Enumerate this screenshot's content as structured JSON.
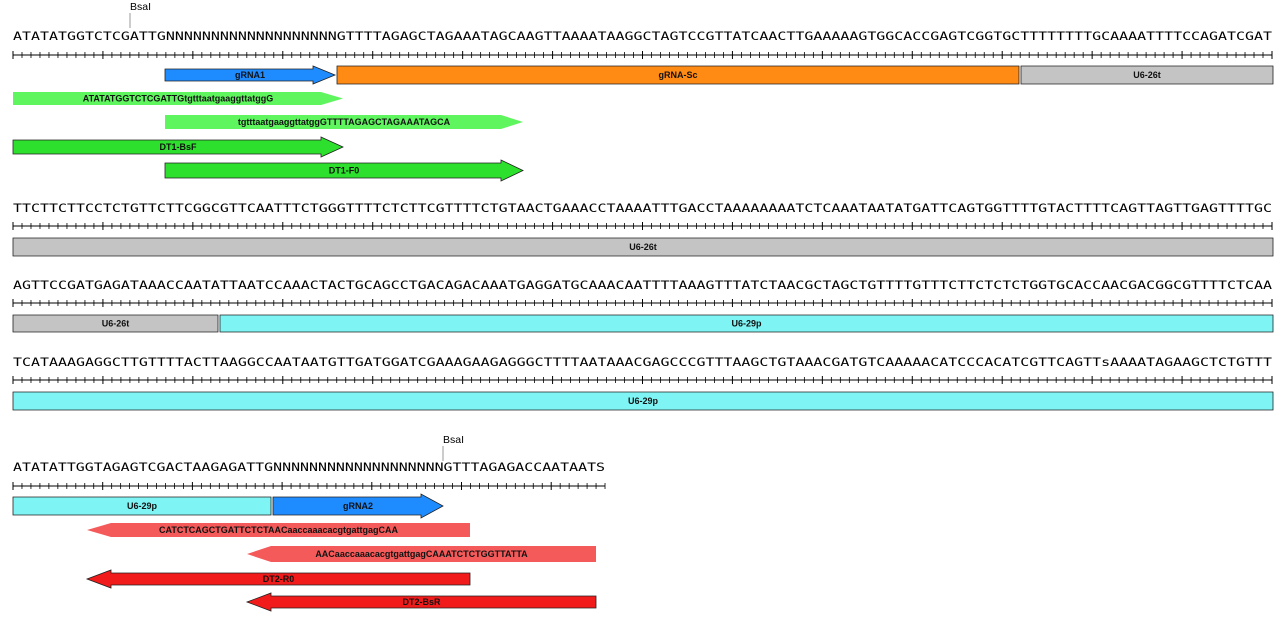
{
  "enzyme_label": "BsaI",
  "colors": {
    "grna": "#1e8cff",
    "scaffold": "#ff8a14",
    "u6_26t": "#c4c4c4",
    "u6_29p": "#7ff4f4",
    "primer_light_green": "#5ff55f",
    "primer_green": "#2ee02e",
    "primer_light_red": "#f55a5a",
    "primer_red": "#f21b1b"
  },
  "sequence_rows": [
    {
      "sequence": "ATATATGGTCTCGATTGNNNNNNNNNNNNNNNNNNNGTTTTAGAGCTAGAAATAGCAAGTTAAAATAAGGCTAGTCCGTTATCAACTTGAAAAAGTGGCACCGAGTCGGTGCTTTTTTTTGCAAAATTTTCCAGATCGAT",
      "features": [
        {
          "name": "gRNA1",
          "color": "grna",
          "arrow": "right"
        },
        {
          "name": "gRNA-Sc",
          "color": "scaffold",
          "arrow": "none"
        },
        {
          "name": "U6-26t",
          "color": "u6_26t",
          "arrow": "none"
        },
        {
          "name": "ATATATGGTCTCGATTGtgtttaatgaaggttatggG",
          "color": "primer_light_green",
          "arrow": "right"
        },
        {
          "name": "tgtttaatgaaggttatggGTTTTAGAGCTAGAAATAGCA",
          "color": "primer_light_green",
          "arrow": "right"
        },
        {
          "name": "DT1-BsF",
          "color": "primer_green",
          "arrow": "right"
        },
        {
          "name": "DT1-F0",
          "color": "primer_green",
          "arrow": "right"
        }
      ]
    },
    {
      "sequence": "TTCTTCTTCCTCTGTTCTTCGGCGTTCAATTTCTGGGTTTTCTCTTCGTTTTCTGTAACTGAAACCTAAAATTTGACCTAAAAAAAATCTCAAATAATATGATTCAGTGGTTTTGTACTTTTCAGTTAGTTGAGTTTTGC",
      "features": [
        {
          "name": "U6-26t",
          "color": "u6_26t",
          "arrow": "none"
        }
      ]
    },
    {
      "sequence": "AGTTCCGATGAGATAAACCAATATTAATCCAAACTACTGCAGCCTGACAGACAAATGAGGATGCAAACAATTTTAAAGTTTATCTAACGCTAGCTGTTTTGTTTCTTCTCTCTGGTGCACCAACGACGGCGTTTTCTCAA",
      "features": [
        {
          "name": "U6-26t",
          "color": "u6_26t",
          "arrow": "none"
        },
        {
          "name": "U6-29p",
          "color": "u6_29p",
          "arrow": "none"
        }
      ]
    },
    {
      "sequence": "TCATAAAGAGGCTTGTTTTACTTAAGGCCAATAATGTTGATGGATCGAAAGAAGAGGGCTTTTAATAAACGAGCCCGTTTAAGCTGTAAACGATGTCAAAAACATCCCACATCGTTCAGTTsAAAATAGAAGCTCTGTTT",
      "features": [
        {
          "name": "U6-29p",
          "color": "u6_29p",
          "arrow": "none"
        }
      ]
    },
    {
      "sequence": "ATATATTGGTAGAGTCGACTAAGAGATTGNNNNNNNNNNNNNNNNNNNGTTTAGAGACCAATAATS",
      "features": [
        {
          "name": "U6-29p",
          "color": "u6_29p",
          "arrow": "none"
        },
        {
          "name": "gRNA2",
          "color": "grna",
          "arrow": "right"
        },
        {
          "name": "CATCTCAGCTGATTCTCTAACaaccaaacacgtgattgagCAA",
          "color": "primer_light_red",
          "arrow": "left"
        },
        {
          "name": "AACaaccaaacacgtgattgagCAAATCTCTGGTTATTA",
          "color": "primer_light_red",
          "arrow": "left"
        },
        {
          "name": "DT2-R0",
          "color": "primer_red",
          "arrow": "left"
        },
        {
          "name": "DT2-BsR",
          "color": "primer_red",
          "arrow": "left"
        }
      ]
    }
  ]
}
